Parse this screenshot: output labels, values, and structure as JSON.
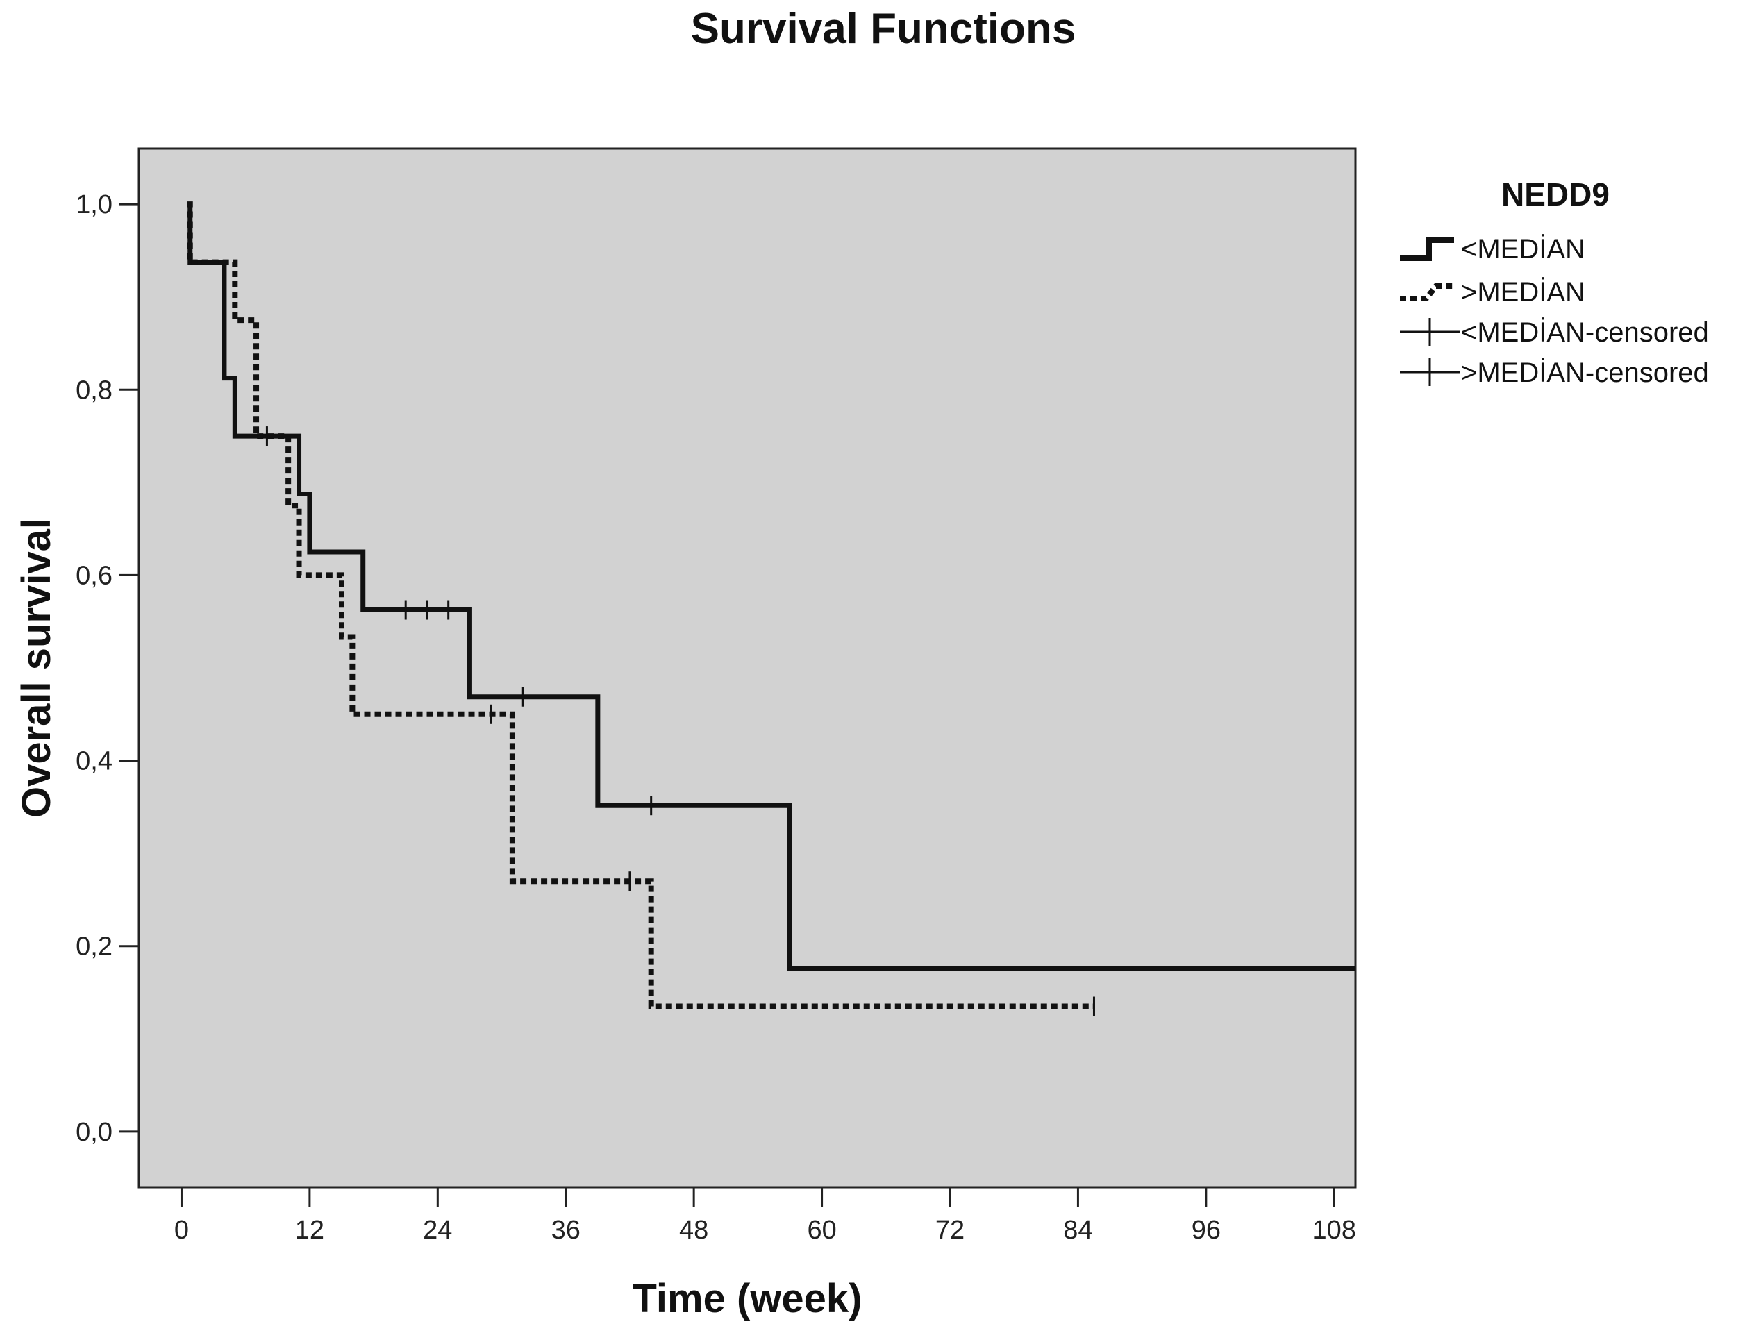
{
  "chart_data": {
    "type": "line",
    "subtype": "kaplan-meier-step",
    "title": "Survival Functions",
    "xlabel": "Time (week)",
    "ylabel": "Overall survival",
    "xlim": [
      -4,
      110
    ],
    "ylim": [
      -0.06,
      1.06
    ],
    "xticks": [
      0,
      12,
      24,
      36,
      48,
      60,
      72,
      84,
      96,
      108
    ],
    "xtick_labels": [
      "0",
      "12",
      "24",
      "36",
      "48",
      "60",
      "72",
      "84",
      "96",
      "108"
    ],
    "yticks": [
      0,
      0.2,
      0.4,
      0.6,
      0.8,
      1.0
    ],
    "ytick_labels": [
      "0,0",
      "0,2",
      "0,4",
      "0,6",
      "0,8",
      "1,0"
    ],
    "plot_background": "#d2d2d2",
    "line_color": "#111111",
    "legend": {
      "title": "NEDD9",
      "position": "right",
      "entries": [
        "<MEDİAN",
        ">MEDİAN",
        "<MEDİAN-censored",
        ">MEDİAN-censored"
      ]
    },
    "series": [
      {
        "name": "<MEDİAN",
        "style": "solid",
        "steps": [
          [
            0.5,
            1.0
          ],
          [
            0.8,
            0.9375
          ],
          [
            4.0,
            0.8125
          ],
          [
            5.0,
            0.75
          ],
          [
            11.0,
            0.6875
          ],
          [
            12.0,
            0.625
          ],
          [
            17.0,
            0.5625
          ],
          [
            27.0,
            0.46875
          ],
          [
            39.0,
            0.3516
          ],
          [
            57.0,
            0.1758
          ]
        ],
        "end_x": 110,
        "censored": [
          [
            21.0,
            0.5625
          ],
          [
            23.0,
            0.5625
          ],
          [
            25.0,
            0.5625
          ],
          [
            32.0,
            0.46875
          ],
          [
            44.0,
            0.3516
          ]
        ]
      },
      {
        "name": ">MEDİAN",
        "style": "dotted",
        "steps": [
          [
            0.5,
            1.0
          ],
          [
            0.8,
            0.9375
          ],
          [
            5.0,
            0.875
          ],
          [
            7.0,
            0.75
          ],
          [
            10.0,
            0.675
          ],
          [
            11.0,
            0.6
          ],
          [
            15.0,
            0.5333
          ],
          [
            16.0,
            0.45
          ],
          [
            31.0,
            0.27
          ],
          [
            44.0,
            0.135
          ]
        ],
        "end_x": 85.5,
        "censored": [
          [
            8.0,
            0.75
          ],
          [
            29.0,
            0.45
          ],
          [
            42.0,
            0.27
          ],
          [
            85.5,
            0.135
          ]
        ]
      }
    ]
  }
}
